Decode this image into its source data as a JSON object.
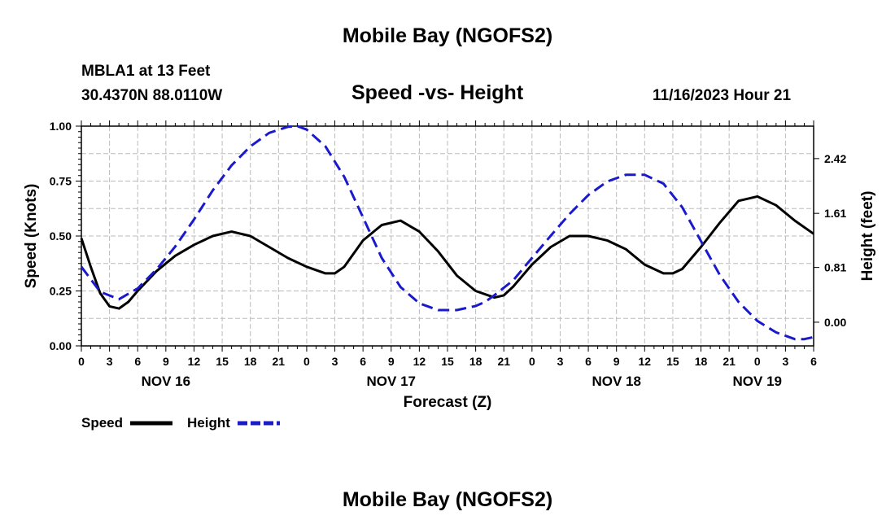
{
  "page": {
    "title": "Mobile Bay (NGOFS2)",
    "station_line": "MBLA1 at 13 Feet",
    "coords_line": "30.4370N  88.0110W",
    "datetime": "11/16/2023 Hour 21",
    "footer_title": "Mobile Bay (NGOFS2)"
  },
  "chart_data": {
    "type": "line",
    "title": "Speed -vs- Height",
    "xlabel": "Forecast (Z)",
    "ylabel": "Speed (Knots)",
    "y2label": "Height (feet)",
    "x_unit": "hours since NOV 16 00Z",
    "xlim": [
      0,
      78
    ],
    "ylim": [
      0,
      1.0
    ],
    "y2lim": [
      -0.35,
      2.9
    ],
    "grid": true,
    "yticks": [
      "0.00",
      "0.25",
      "0.50",
      "0.75",
      "1.00"
    ],
    "y2ticks": [
      "0.00",
      "0.81",
      "1.61",
      "2.42"
    ],
    "xticks": [
      "0",
      "3",
      "6",
      "9",
      "12",
      "15",
      "18",
      "21",
      "0",
      "3",
      "6",
      "9",
      "12",
      "15",
      "18",
      "21",
      "0",
      "3",
      "6",
      "9",
      "12",
      "15",
      "18",
      "21",
      "0",
      "3",
      "6"
    ],
    "day_labels": [
      "NOV 16",
      "NOV 17",
      "NOV 18",
      "NOV 19"
    ],
    "series": [
      {
        "name": "Speed",
        "axis": "left",
        "color": "#000000",
        "style": "solid",
        "x": [
          0,
          1,
          2,
          3,
          4,
          5,
          6,
          8,
          10,
          12,
          14,
          16,
          18,
          20,
          22,
          24,
          26,
          27,
          28,
          30,
          32,
          34,
          36,
          38,
          40,
          42,
          44,
          45,
          46,
          48,
          50,
          52,
          54,
          56,
          58,
          60,
          62,
          63,
          64,
          66,
          68,
          70,
          72,
          74,
          76,
          78
        ],
        "values": [
          0.49,
          0.36,
          0.24,
          0.18,
          0.17,
          0.2,
          0.25,
          0.34,
          0.41,
          0.46,
          0.5,
          0.52,
          0.5,
          0.45,
          0.4,
          0.36,
          0.33,
          0.33,
          0.36,
          0.48,
          0.55,
          0.57,
          0.52,
          0.43,
          0.32,
          0.25,
          0.22,
          0.23,
          0.27,
          0.37,
          0.45,
          0.5,
          0.5,
          0.48,
          0.44,
          0.37,
          0.33,
          0.33,
          0.35,
          0.45,
          0.56,
          0.66,
          0.68,
          0.64,
          0.57,
          0.51
        ]
      },
      {
        "name": "Height",
        "axis": "right",
        "color": "#1a1acc",
        "style": "dashed",
        "x": [
          0,
          2,
          4,
          6,
          8,
          10,
          12,
          14,
          16,
          18,
          20,
          22,
          23,
          24,
          26,
          28,
          30,
          32,
          34,
          36,
          38,
          40,
          42,
          43,
          44,
          46,
          48,
          50,
          52,
          54,
          56,
          58,
          60,
          62,
          64,
          66,
          68,
          70,
          72,
          74,
          76,
          77,
          78
        ],
        "values": [
          0.82,
          0.45,
          0.34,
          0.5,
          0.78,
          1.12,
          1.52,
          1.95,
          2.32,
          2.6,
          2.8,
          2.89,
          2.9,
          2.85,
          2.6,
          2.15,
          1.55,
          0.95,
          0.52,
          0.28,
          0.18,
          0.18,
          0.24,
          0.3,
          0.4,
          0.62,
          0.95,
          1.28,
          1.6,
          1.88,
          2.08,
          2.18,
          2.18,
          2.05,
          1.7,
          1.2,
          0.7,
          0.3,
          0.02,
          -0.15,
          -0.25,
          -0.25,
          -0.22
        ]
      }
    ],
    "legend": [
      {
        "label": "Speed",
        "color": "#000000",
        "style": "solid"
      },
      {
        "label": "Height",
        "color": "#1a1acc",
        "style": "dashed"
      }
    ]
  }
}
